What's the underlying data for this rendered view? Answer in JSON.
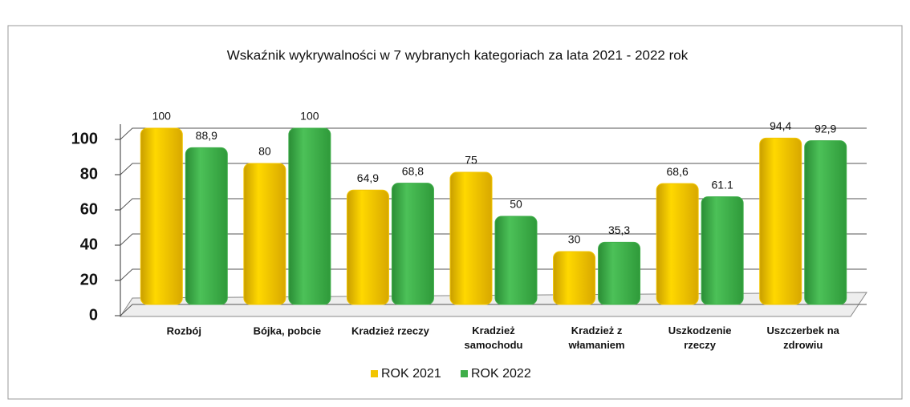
{
  "chart_data": {
    "type": "bar",
    "title": "Wskaźnik wykrywalności w 7 wybranych kategoriach za lata  2021 - 2022 rok",
    "categories": [
      "Rozbój",
      "Bójka, pobcie",
      "Kradzież rzeczy",
      "Kradzież\nsamochodu",
      "Kradzież z\nwłamaniem",
      "Uszkodzenie\nrzeczy",
      "Uszczerbek na\nzdrowiu"
    ],
    "series": [
      {
        "name": "ROK 2021",
        "color": "#f2c500",
        "values": [
          100,
          80,
          64.9,
          75,
          30,
          68.6,
          94.4
        ],
        "value_labels": [
          "100",
          "80",
          "64,9",
          "75",
          "30",
          "68,6",
          "94,4"
        ]
      },
      {
        "name": "ROK 2022",
        "color": "#3fae49",
        "values": [
          88.9,
          100,
          68.8,
          50,
          35.3,
          61.1,
          92.9
        ],
        "value_labels": [
          "88,9",
          "100",
          "68,8",
          "50",
          "35,3",
          "61.1",
          "92,9"
        ]
      }
    ],
    "ylim": [
      0,
      100
    ],
    "yticks": [
      0,
      20,
      40,
      60,
      80,
      100
    ],
    "grid": true,
    "legend": "bottom"
  }
}
